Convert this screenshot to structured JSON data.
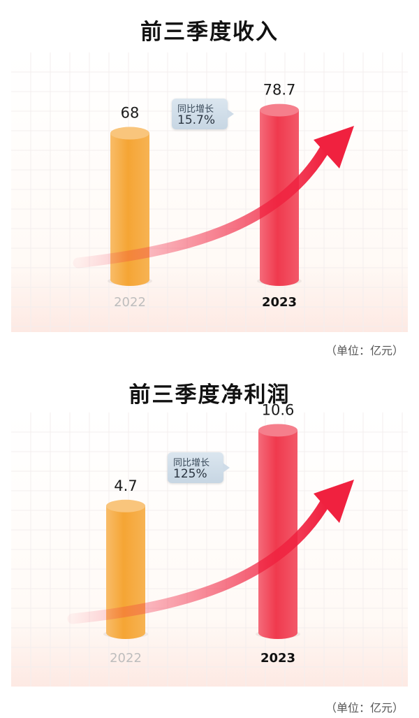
{
  "chart_data": [
    {
      "type": "bar",
      "title": "前三季度收入",
      "categories": [
        "2022",
        "2023"
      ],
      "values": [
        68,
        78.7
      ],
      "value_labels": [
        "68",
        "78.7"
      ],
      "unit_note": "（单位：亿元）",
      "annotation": {
        "label": "同比增长",
        "value": "15.7%"
      },
      "colors": {
        "2022": "#f5a535",
        "2023": "#f03a4e",
        "arrow": "#f0213f"
      }
    },
    {
      "type": "bar",
      "title": "前三季度净利润",
      "categories": [
        "2022",
        "2023"
      ],
      "values": [
        4.7,
        10.6
      ],
      "value_labels": [
        "4.7",
        "10.6"
      ],
      "unit_note": "（单位：亿元）",
      "annotation": {
        "label": "同比增长",
        "value": "125%"
      },
      "colors": {
        "2022": "#f5a535",
        "2023": "#f03a4e",
        "arrow": "#f0213f"
      }
    }
  ]
}
